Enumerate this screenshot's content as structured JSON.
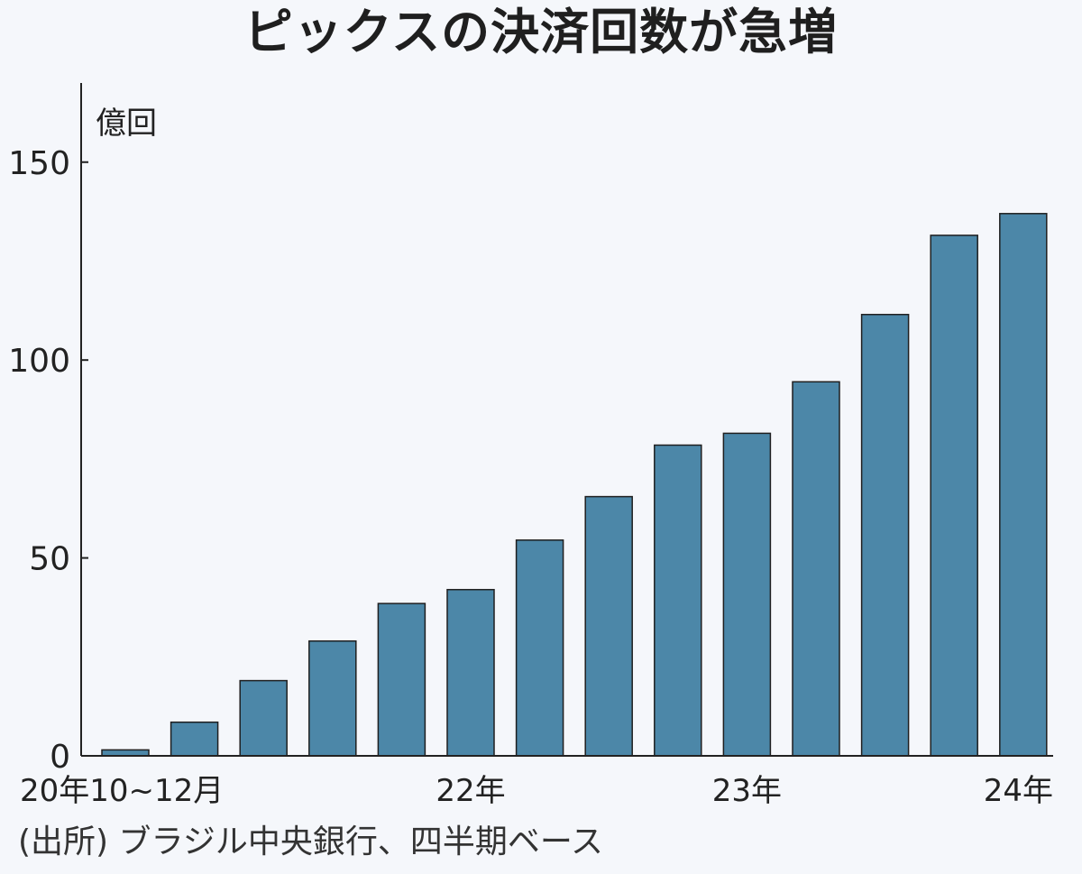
{
  "colors": {
    "background": "#f5f7fb",
    "bar": "#4c87a8",
    "bar_outline": "#1f1f1f",
    "axis": "#222222",
    "text": "#222222"
  },
  "chart_data": {
    "type": "bar",
    "title": "ピックスの決済回数が急増",
    "ylabel": "億回",
    "xlabel": "",
    "ylim": [
      0,
      170
    ],
    "yticks": [
      0,
      50,
      100,
      150
    ],
    "grid": false,
    "categories": [
      "20年10~12月",
      "",
      "",
      "",
      "",
      "22年",
      "",
      "",
      "",
      "23年",
      "",
      "",
      "",
      "24年"
    ],
    "values": [
      1.5,
      8.5,
      19,
      29,
      38.5,
      42,
      54.5,
      65.5,
      78.5,
      81.5,
      94.5,
      111.5,
      131.5,
      137
    ]
  },
  "source": "(出所) ブラジル中央銀行、四半期ベース"
}
